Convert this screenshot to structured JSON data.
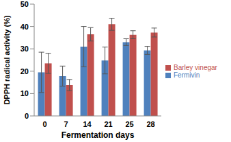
{
  "chart_data": {
    "type": "bar",
    "x_label": "Fermentation days",
    "y_label": "DPPH radical activity (%)",
    "categories": [
      "0",
      "7",
      "14",
      "21",
      "25",
      "28"
    ],
    "series": [
      {
        "name": "Fermivin",
        "color": "#4f81bd",
        "values": [
          19.5,
          17.8,
          31,
          24.8,
          33,
          29.3
        ],
        "errors": [
          9,
          4.5,
          9,
          6,
          1.5,
          1.8
        ]
      },
      {
        "name": "Barley vinegar",
        "color": "#c0504d",
        "values": [
          23.5,
          13.8,
          36.5,
          41,
          36.3,
          37.3
        ],
        "errors": [
          4.5,
          2.5,
          3,
          2.7,
          1.8,
          2
        ]
      }
    ],
    "ylim": [
      0,
      50
    ],
    "yticks": [
      0,
      10,
      20,
      30,
      40,
      50
    ],
    "grid": false,
    "legend": "right"
  }
}
